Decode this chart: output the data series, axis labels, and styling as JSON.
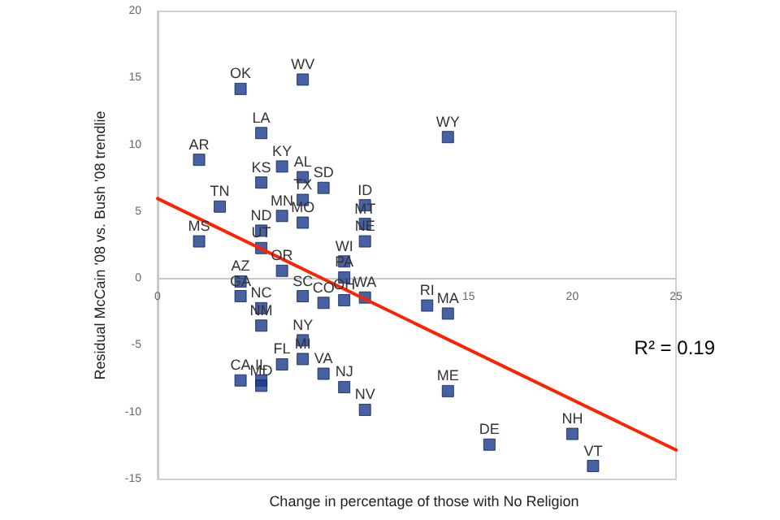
{
  "chart_data": {
    "type": "scatter",
    "xlabel": "Change in percentage of those with No Religion",
    "ylabel": "Residual McCain '08 vs. Bush '08 trendlie",
    "series": [
      {
        "color": "#1a3a8c",
        "marker": "square",
        "x": [
          4.0,
          7.0,
          5.0,
          2.0,
          6.0,
          5.0,
          7.0,
          8.0,
          7.0,
          3.0,
          10.0,
          6.0,
          7.0,
          10.0,
          5.0,
          2.0,
          10.0,
          5.0,
          9.0,
          6.0,
          9.0,
          4.0,
          4.0,
          7.0,
          9.0,
          8.0,
          10.0,
          5.0,
          5.0,
          7.0,
          7.0,
          6.0,
          8.0,
          4.0,
          5.0,
          5.0,
          9.0,
          10.0,
          14.0,
          13.0,
          14.0,
          14.0,
          16.0,
          20.0,
          21.0
        ],
        "values": [
          14.2,
          14.9,
          10.9,
          8.9,
          8.4,
          7.2,
          7.6,
          6.8,
          5.9,
          5.4,
          5.5,
          4.7,
          4.2,
          4.1,
          3.6,
          2.8,
          2.8,
          2.3,
          1.3,
          0.6,
          0.1,
          -0.2,
          -1.3,
          -1.3,
          -1.6,
          -1.8,
          -1.4,
          -2.2,
          -3.5,
          -4.6,
          -6.0,
          -6.4,
          -7.1,
          -7.6,
          -7.6,
          -8.0,
          -8.1,
          -9.8,
          10.6,
          -2.0,
          -2.6,
          -8.4,
          -12.4,
          -11.6,
          -14.0
        ]
      },
      {
        "type": "line",
        "color": "#ff2200",
        "marker": "none",
        "x": [
          0,
          25
        ],
        "values": [
          6.0,
          -12.8
        ]
      }
    ],
    "xlim": [
      0,
      25
    ],
    "xticks": [
      0,
      15,
      20,
      25
    ],
    "ylim": [
      -15,
      20
    ],
    "yticks": [
      -15,
      -10,
      -5,
      0,
      5,
      10,
      15,
      20
    ],
    "grid": false,
    "annotations": [
      "R² = 0.19",
      {
        "text": "OK",
        "x": 4.0,
        "y": 14.2
      },
      {
        "text": "WV",
        "x": 7.0,
        "y": 14.9
      },
      {
        "text": "LA",
        "x": 5.0,
        "y": 10.9
      },
      {
        "text": "AR",
        "x": 2.0,
        "y": 8.9
      },
      {
        "text": "KY",
        "x": 6.0,
        "y": 8.4
      },
      {
        "text": "KS",
        "x": 5.0,
        "y": 7.2
      },
      {
        "text": "AL",
        "x": 7.0,
        "y": 7.6
      },
      {
        "text": "SD",
        "x": 8.0,
        "y": 6.8
      },
      {
        "text": "TX",
        "x": 7.0,
        "y": 5.9
      },
      {
        "text": "TN",
        "x": 3.0,
        "y": 5.4
      },
      {
        "text": "ID",
        "x": 10.0,
        "y": 5.5
      },
      {
        "text": "MN",
        "x": 6.0,
        "y": 4.7
      },
      {
        "text": "MO",
        "x": 7.0,
        "y": 4.2
      },
      {
        "text": "MT",
        "x": 10.0,
        "y": 4.1
      },
      {
        "text": "ND",
        "x": 5.0,
        "y": 3.6
      },
      {
        "text": "MS",
        "x": 2.0,
        "y": 2.8
      },
      {
        "text": "NE",
        "x": 10.0,
        "y": 2.8
      },
      {
        "text": "UT",
        "x": 5.0,
        "y": 2.3
      },
      {
        "text": "WI",
        "x": 9.0,
        "y": 1.3
      },
      {
        "text": "OR",
        "x": 6.0,
        "y": 0.6
      },
      {
        "text": "PA",
        "x": 9.0,
        "y": 0.1
      },
      {
        "text": "AZ",
        "x": 4.0,
        "y": -0.2
      },
      {
        "text": "GA",
        "x": 4.0,
        "y": -1.3
      },
      {
        "text": "SC",
        "x": 7.0,
        "y": -1.3
      },
      {
        "text": "OH",
        "x": 9.0,
        "y": -1.6
      },
      {
        "text": "CO",
        "x": 8.0,
        "y": -1.8
      },
      {
        "text": "WA",
        "x": 10.0,
        "y": -1.4
      },
      {
        "text": "NC",
        "x": 5.0,
        "y": -2.2
      },
      {
        "text": "NM",
        "x": 5.0,
        "y": -3.5
      },
      {
        "text": "NY",
        "x": 7.0,
        "y": -4.6
      },
      {
        "text": "MI",
        "x": 7.0,
        "y": -6.0
      },
      {
        "text": "FL",
        "x": 6.0,
        "y": -6.4
      },
      {
        "text": "VA",
        "x": 8.0,
        "y": -7.1
      },
      {
        "text": "CA",
        "x": 4.0,
        "y": -7.6
      },
      {
        "text": "IL",
        "x": 5.0,
        "y": -7.6
      },
      {
        "text": "MD",
        "x": 5.0,
        "y": -8.0
      },
      {
        "text": "NJ",
        "x": 9.0,
        "y": -8.1
      },
      {
        "text": "NV",
        "x": 10.0,
        "y": -9.8
      },
      {
        "text": "WY",
        "x": 14.0,
        "y": 10.6
      },
      {
        "text": "RI",
        "x": 13.0,
        "y": -2.0
      },
      {
        "text": "MA",
        "x": 14.0,
        "y": -2.6
      },
      {
        "text": "ME",
        "x": 14.0,
        "y": -8.4
      },
      {
        "text": "DE",
        "x": 16.0,
        "y": -12.4
      },
      {
        "text": "NH",
        "x": 20.0,
        "y": -11.6
      },
      {
        "text": "VT",
        "x": 21.0,
        "y": -14.0
      }
    ]
  }
}
